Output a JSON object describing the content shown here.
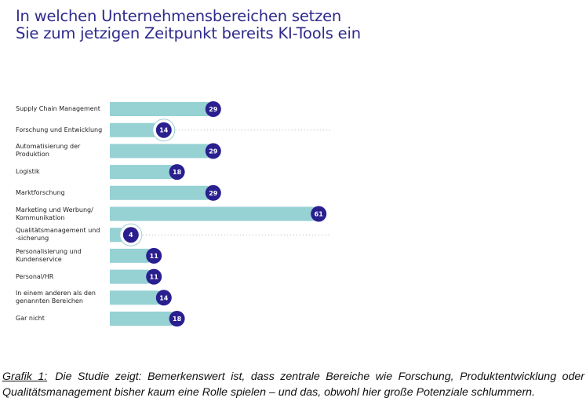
{
  "chart_data": {
    "type": "bar",
    "orientation": "horizontal",
    "title": "In welchen Unternehmensbereichen setzen Sie zum jetzigen Zeitpunkt bereits KI-Tools ein",
    "title_lines": [
      "In welchen Unternehmensbereichen setzen",
      "Sie zum jetzigen Zeitpunkt bereits KI-Tools ein"
    ],
    "categories": [
      [
        "Supply Chain Management"
      ],
      [
        "Forschung und Entwicklung"
      ],
      [
        "Automatisierung der",
        "Produktion"
      ],
      [
        "Logistik"
      ],
      [
        "Marktforschung"
      ],
      [
        "Marketing und Werbung/",
        "Kommunikation"
      ],
      [
        "Qualitätsmanagement und",
        "-sicherung"
      ],
      [
        "Personalisierung und",
        "Kundenservice"
      ],
      [
        "Personal/HR"
      ],
      [
        "In einem anderen als den",
        "genannten Bereichen"
      ],
      [
        "Gar nicht"
      ]
    ],
    "values": [
      29,
      14,
      29,
      18,
      29,
      61,
      4,
      11,
      11,
      14,
      18
    ],
    "highlighted": [
      1,
      6
    ],
    "colors": {
      "bar": "#96d1d4",
      "badge": "#2a1f8f",
      "title": "#2e2a8c"
    }
  },
  "caption": {
    "label": "Grafik 1:",
    "text": "Die Studie zeigt: Bemerkenswert ist, dass zentrale Bereiche wie Forschung, Produktentwicklung oder Qualitätsmanagement bisher kaum eine Rolle spielen – und das, obwohl hier große Potenziale schlummern."
  }
}
